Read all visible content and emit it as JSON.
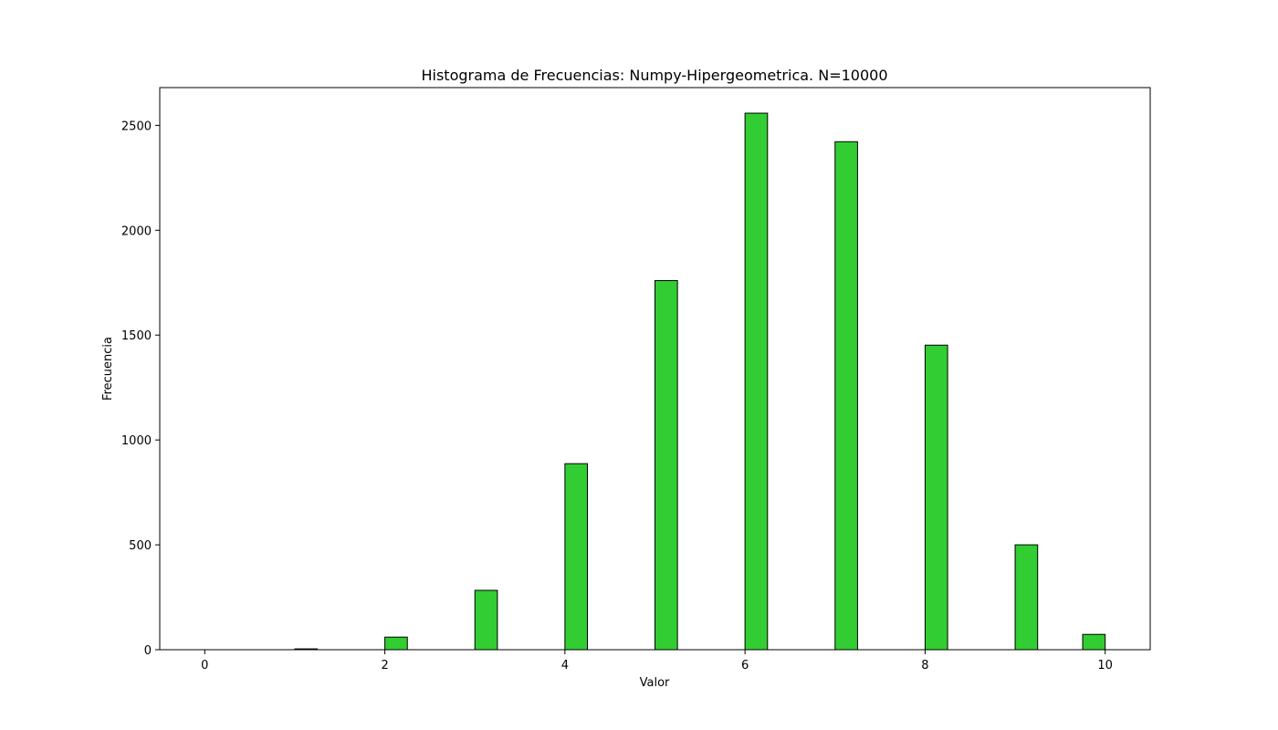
{
  "chart_data": {
    "type": "bar",
    "title": "Histograma de Frecuencias: Numpy-Hipergeometrica. N=10000",
    "xlabel": "Valor",
    "ylabel": "Frecuencia",
    "xlim": [
      -0.5,
      10.5
    ],
    "ylim": [
      0,
      2680
    ],
    "bar_color": "#32cd32",
    "edge_color": "#000000",
    "x_ticks": [
      0,
      2,
      4,
      6,
      8,
      10
    ],
    "y_ticks": [
      0,
      500,
      1000,
      1500,
      2000,
      2500
    ],
    "bins": [
      {
        "x0": 0,
        "x1": 0.25,
        "value": 0
      },
      {
        "x0": 1,
        "x1": 1.25,
        "value": 4
      },
      {
        "x0": 2,
        "x1": 2.25,
        "value": 60
      },
      {
        "x0": 3,
        "x1": 3.25,
        "value": 283
      },
      {
        "x0": 4,
        "x1": 4.25,
        "value": 887
      },
      {
        "x0": 5,
        "x1": 5.25,
        "value": 1760
      },
      {
        "x0": 6,
        "x1": 6.25,
        "value": 2558
      },
      {
        "x0": 7,
        "x1": 7.25,
        "value": 2422
      },
      {
        "x0": 8,
        "x1": 8.25,
        "value": 1452
      },
      {
        "x0": 9,
        "x1": 9.25,
        "value": 500
      },
      {
        "x0": 9.75,
        "x1": 10,
        "value": 73
      }
    ],
    "grid": false,
    "legend": "none"
  }
}
